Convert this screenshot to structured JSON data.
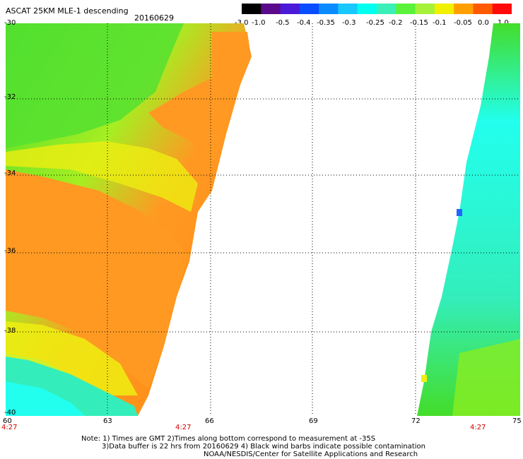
{
  "header": {
    "title": "ASCAT 25KM MLE-1 descending",
    "date": "20160629"
  },
  "colorbar": {
    "labels": [
      "-3.0",
      "-1.0",
      "-0.5",
      "-0.4",
      "-0.35",
      "-0.3",
      "-0.25",
      "-0.2",
      "-0.15",
      "-0.1",
      "-0.05",
      "0.0",
      "1.0"
    ],
    "colors": [
      "#000000",
      "#5a0a8a",
      "#4a1ad8",
      "#0a4cff",
      "#0a8cff",
      "#18c8ff",
      "#00ffee",
      "#3af0b8",
      "#5af23a",
      "#a6f23a",
      "#f0f000",
      "#ffa000",
      "#ff5a00",
      "#ff0a0a"
    ]
  },
  "map": {
    "lat_labels": [
      "-30",
      "-32",
      "-34",
      "-36",
      "-38",
      "-40"
    ],
    "lon_labels": [
      "60",
      "63",
      "66",
      "69",
      "72",
      "75"
    ],
    "time_labels": [
      "4:27",
      "4:27",
      "4:27"
    ],
    "swath_colors": {
      "green": "#44dd2a",
      "lime": "#88ee22",
      "yellow": "#eeee11",
      "orange": "#ff9922",
      "deep_orange": "#ff8811",
      "cyan": "#22ffee",
      "sea_green": "#33eebb",
      "blue": "#2266ff"
    }
  },
  "notes": {
    "line1": "Note: 1) Times are GMT 2)Times along bottom correspond to measurement at -35S",
    "line2": "3)Data buffer is 22 hrs from 20160629 4) Black wind barbs indicate possible contamination",
    "line3": "NOAA/NESDIS/Center for Satellite Applications and Research"
  }
}
